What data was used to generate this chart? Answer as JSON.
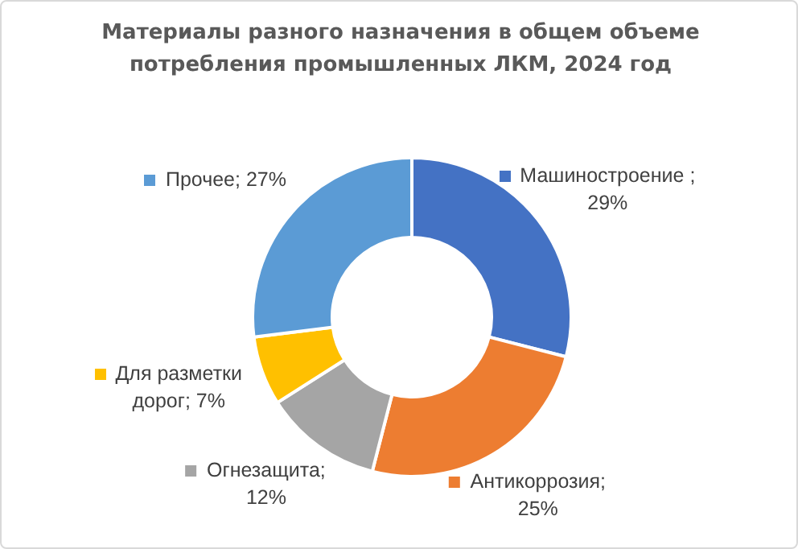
{
  "chart_data": {
    "type": "donut",
    "title": "Материалы разного назначения в общем объеме потребления промышленных ЛКМ, 2024 год",
    "categories": [
      "Машиностроение",
      "Антикоррозия",
      "Огнезащита",
      "Для разметки дорог",
      "Прочее"
    ],
    "values": [
      29,
      25,
      12,
      7,
      27
    ],
    "colors": [
      "#4472c4",
      "#ed7d31",
      "#a5a5a5",
      "#ffc000",
      "#5b9bd5"
    ],
    "value_labels": [
      " ;\n29%",
      ";\n25%",
      ";\n12%",
      "; 7%",
      "; 27%"
    ],
    "legend": "left"
  }
}
